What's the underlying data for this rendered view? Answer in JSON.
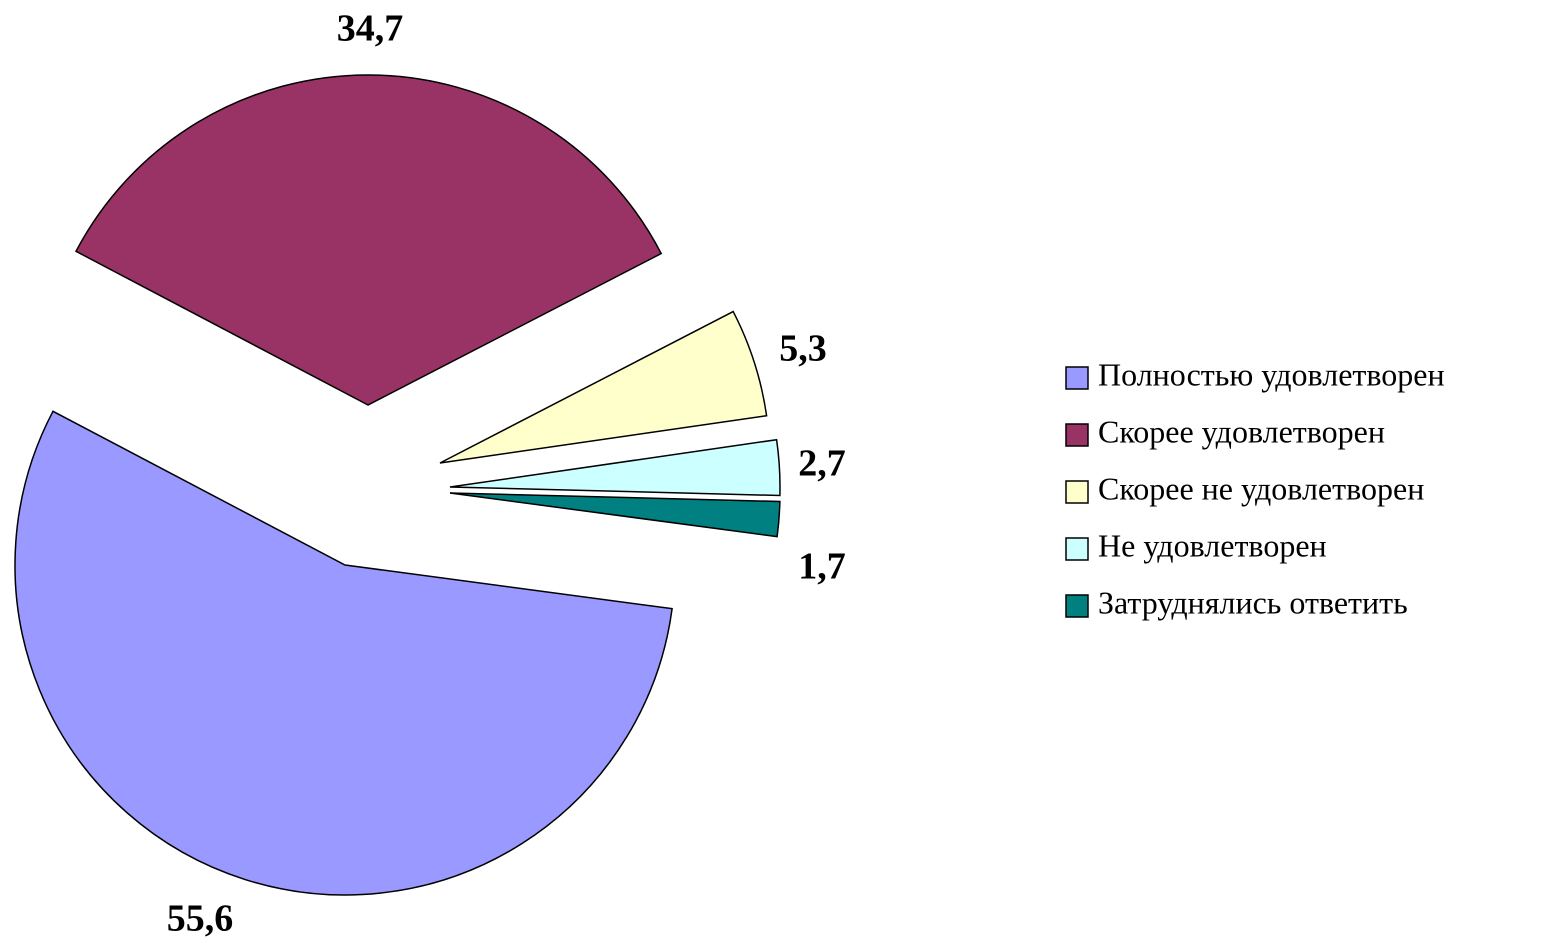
{
  "chart_data": {
    "type": "pie",
    "categories": [
      "Полностью удовлетворен",
      "Скорее удовлетворен",
      "Скорее не удовлетворен",
      "Не удовлетворен",
      "Затруднялись ответить"
    ],
    "values": [
      55.6,
      34.7,
      5.3,
      2.7,
      1.7
    ],
    "value_labels": [
      "55,6",
      "34,7",
      "5,3",
      "2,7",
      "1,7"
    ],
    "colors": [
      "#9999ff",
      "#993366",
      "#ffffcc",
      "#ccffff",
      "#008080"
    ],
    "legend": "right"
  }
}
